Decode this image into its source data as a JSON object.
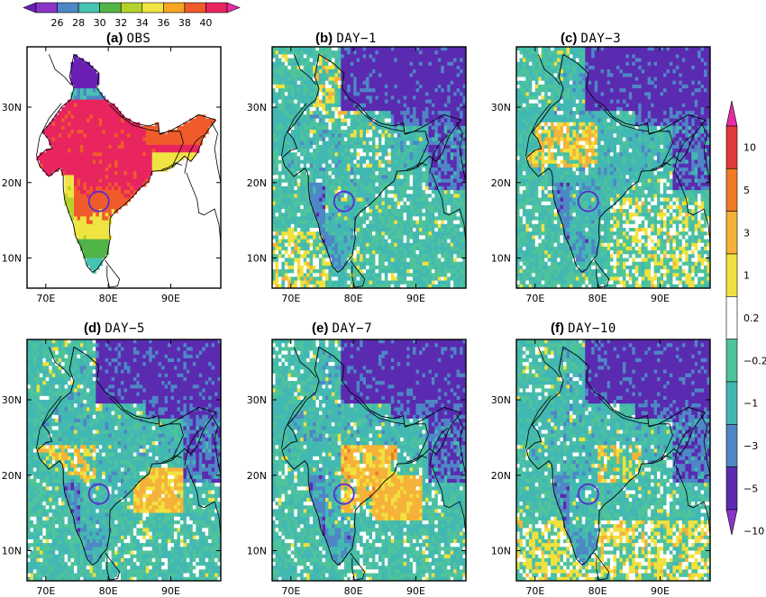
{
  "top_colorbar": {
    "ticks": [
      "26",
      "28",
      "30",
      "32",
      "34",
      "36",
      "38",
      "40"
    ],
    "colors": [
      "#6a1fb5",
      "#8a35c8",
      "#4f86c6",
      "#46c3b1",
      "#52b347",
      "#b5d22c",
      "#f0e442",
      "#f6a623",
      "#ef5b2b",
      "#e8255f",
      "#e62ba6"
    ]
  },
  "side_colorbar": {
    "ticks": [
      "10",
      "5",
      "3",
      "1",
      "0.2",
      "−0.2",
      "−1",
      "−3",
      "−5",
      "−10"
    ],
    "colors": [
      "#e62ba6",
      "#e03a3a",
      "#f07a26",
      "#f5b23a",
      "#f1e13e",
      "#ffffff",
      "#4fc39a",
      "#43b8b3",
      "#4f86c6",
      "#5a2bb0",
      "#8a35c8"
    ]
  },
  "panels": [
    {
      "letter": "(a)",
      "name": "OBS"
    },
    {
      "letter": "(b)",
      "name": "DAY−1"
    },
    {
      "letter": "(c)",
      "name": "DAY−3"
    },
    {
      "letter": "(d)",
      "name": "DAY−5"
    },
    {
      "letter": "(e)",
      "name": "DAY−7"
    },
    {
      "letter": "(f)",
      "name": "DAY−10"
    }
  ],
  "axes": {
    "lat_ticks": [
      "30N",
      "20N",
      "10N"
    ],
    "lon_ticks": [
      "70E",
      "80E",
      "90E"
    ]
  },
  "map_data": {
    "extent": {
      "lon_min": 67,
      "lon_max": 98,
      "lat_min": 6,
      "lat_max": 38
    },
    "highlight_circle": {
      "lon": 78.5,
      "lat": 17.5
    }
  }
}
